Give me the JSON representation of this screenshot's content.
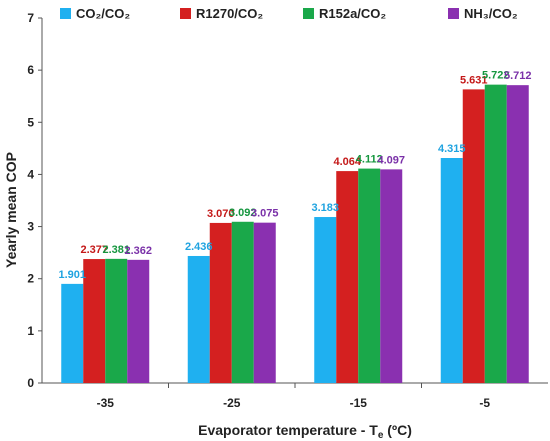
{
  "chart_data": {
    "type": "bar",
    "categories": [
      "-35",
      "-25",
      "-15",
      "-5"
    ],
    "series": [
      {
        "name": "CO₂/CO₂",
        "color": "#1fb0f0",
        "label_color": "#1fa3e0",
        "values": [
          1.901,
          2.436,
          3.183,
          4.315
        ],
        "labels": [
          "1.901",
          "2.436",
          "3.183",
          "4.315"
        ]
      },
      {
        "name": "R1270/CO₂",
        "color": "#d42020",
        "label_color": "#c41818",
        "values": [
          2.377,
          3.07,
          4.064,
          5.631
        ],
        "labels": [
          "2.377",
          "3.070",
          "4.064",
          "5.631"
        ]
      },
      {
        "name": "R152a/CO₂",
        "color": "#1aa84a",
        "label_color": "#14963e",
        "values": [
          2.381,
          3.092,
          4.112,
          5.722
        ],
        "labels": [
          "2.381",
          "3.092",
          "4.112",
          "5.722"
        ]
      },
      {
        "name": "NH₃/CO₂",
        "color": "#8a30b0",
        "label_color": "#7a30a8",
        "values": [
          2.362,
          3.075,
          4.097,
          5.712
        ],
        "labels": [
          "2.362",
          "3.075",
          "4.097",
          "5.712"
        ]
      }
    ],
    "xlabel_main": "Evaporator temperature - T",
    "xlabel_sub": "e",
    "xlabel_unit": " (ºC)",
    "ylabel": "Yearly mean COP",
    "ylim": [
      0,
      7
    ],
    "yticks": [
      "0",
      "1",
      "2",
      "3",
      "4",
      "5",
      "6",
      "7"
    ],
    "grid": false,
    "legend_position": "top"
  }
}
